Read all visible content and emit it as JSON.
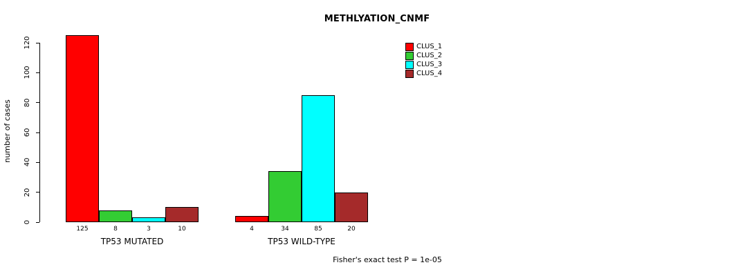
{
  "chart_data": {
    "type": "bar",
    "title": "METHLYATION_CNMF",
    "ylabel": "number of cases",
    "xlabel": "",
    "yticks": [
      0,
      20,
      40,
      60,
      80,
      100,
      120
    ],
    "ylim": [
      0,
      130
    ],
    "grid": false,
    "legend_position": "top-right",
    "series_names": [
      "CLUS_1",
      "CLUS_2",
      "CLUS_3",
      "CLUS_4"
    ],
    "colors": [
      "#FF0000",
      "#33CC33",
      "#00FFFF",
      "#A52A2A"
    ],
    "groups": [
      {
        "label": "TP53 MUTATED",
        "values": [
          125,
          8,
          3,
          10
        ]
      },
      {
        "label": "TP53 WILD-TYPE",
        "values": [
          4,
          34,
          85,
          20
        ]
      }
    ],
    "annotation": "Fisher's exact test P = 1e-05"
  }
}
